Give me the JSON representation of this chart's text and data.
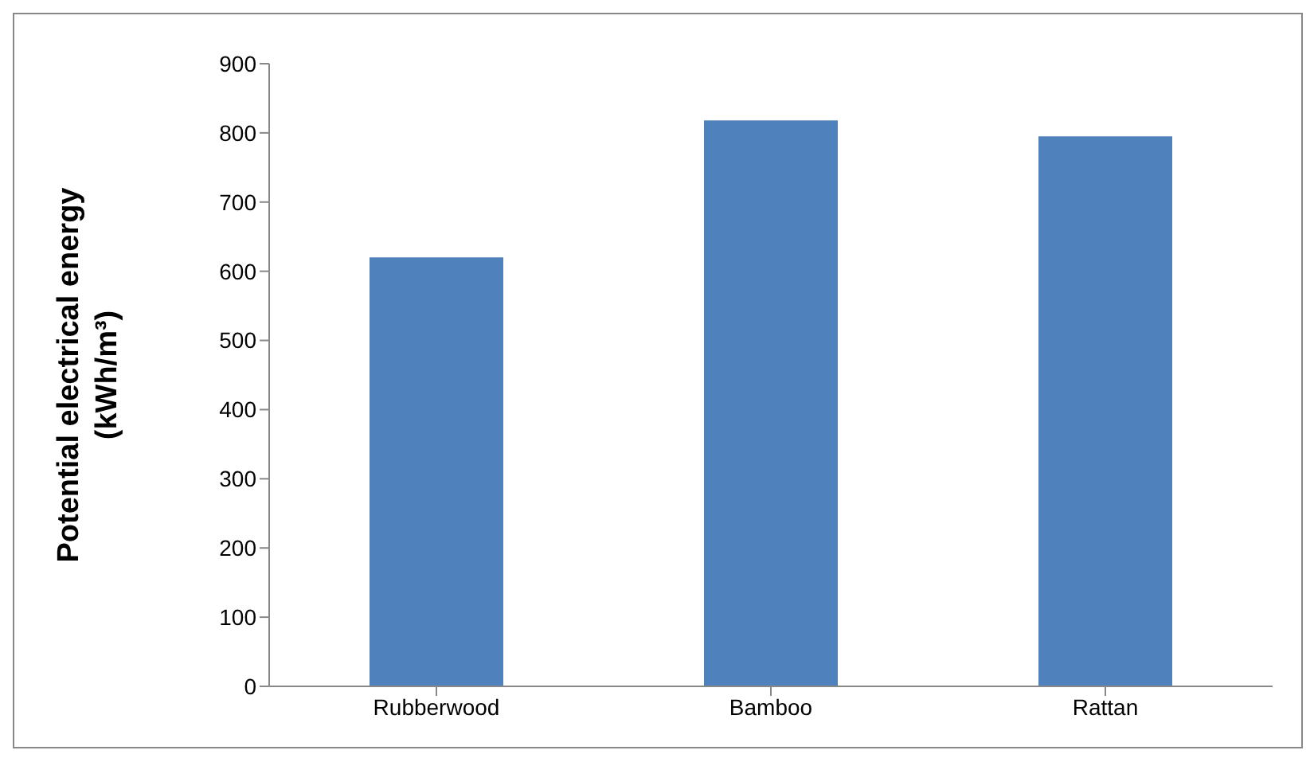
{
  "chart_data": {
    "type": "bar",
    "ylabel": "Potential electrical energy\n(kWh/m³)",
    "categories": [
      "Rubberwood",
      "Bamboo",
      "Rattan"
    ],
    "values": [
      620,
      818,
      795
    ],
    "color": "#4f81bd",
    "ylim": [
      0,
      900
    ],
    "yticks": [
      0,
      100,
      200,
      300,
      400,
      500,
      600,
      700,
      800,
      900
    ],
    "grid": false,
    "legend": false
  }
}
